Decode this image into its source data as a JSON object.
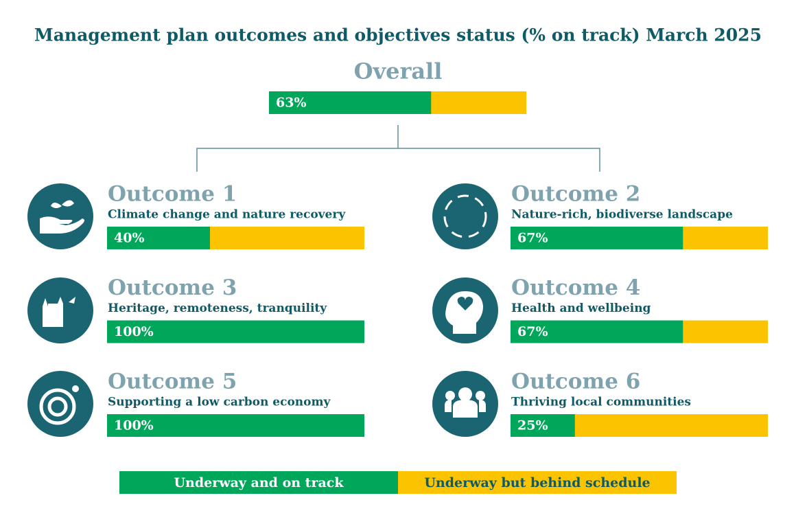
{
  "title": "Management plan outcomes and objectives status (% on track) March 2025",
  "xlim": [
    0,
    100
  ],
  "legend": [
    {
      "name": "Underway and on track",
      "color": "#00a65a"
    },
    {
      "name": "Underway but behind schedule",
      "color": "#fbc300"
    }
  ],
  "overall": {
    "label": "Overall",
    "value": 63,
    "value_label": "63%"
  },
  "outcomes": [
    {
      "label": "Outcome 1",
      "subtitle": "Climate change and nature recovery",
      "value": 40,
      "value_label": "40%"
    },
    {
      "label": "Outcome 2",
      "subtitle": "Nature-rich, biodiverse landscape",
      "value": 67,
      "value_label": "67%"
    },
    {
      "label": "Outcome 3",
      "subtitle": "Heritage, remoteness, tranquility",
      "value": 100,
      "value_label": "100%"
    },
    {
      "label": "Outcome 4",
      "subtitle": "Health and wellbeing",
      "value": 67,
      "value_label": "67%"
    },
    {
      "label": "Outcome 5",
      "subtitle": "Supporting a low carbon economy",
      "value": 100,
      "value_label": "100%"
    },
    {
      "label": "Outcome 6",
      "subtitle": "Thriving local communities",
      "value": 25,
      "value_label": "25%"
    }
  ]
}
